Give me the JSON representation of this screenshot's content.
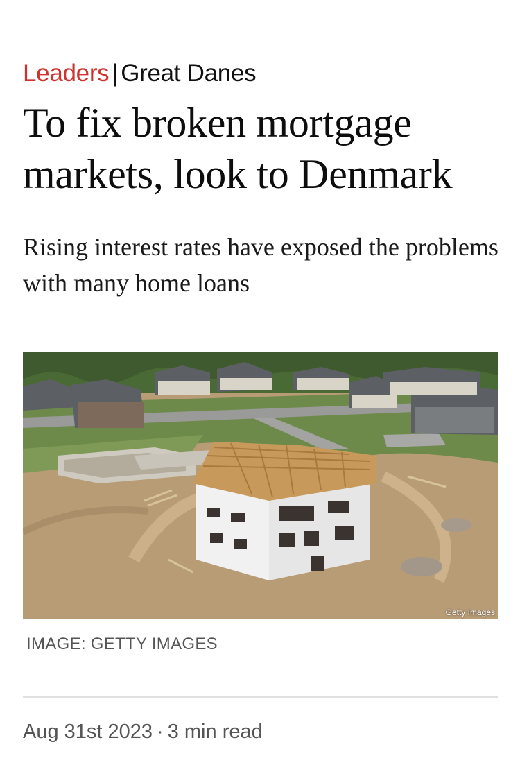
{
  "article": {
    "section": "Leaders",
    "separator": "|",
    "flytitle": "Great Danes",
    "headline": "To fix broken mortgage markets, look to Denmark",
    "rubric": "Rising interest rates have exposed the problems with many home loans",
    "image": {
      "credit_overlay": "Getty Images",
      "caption": "IMAGE: GETTY IMAGES"
    },
    "date": "Aug 31st 2023",
    "meta_separator": "·",
    "read_time": "3 min read"
  },
  "colors": {
    "section_accent": "#cf3330",
    "text": "#111111",
    "meta_text": "#555555"
  }
}
